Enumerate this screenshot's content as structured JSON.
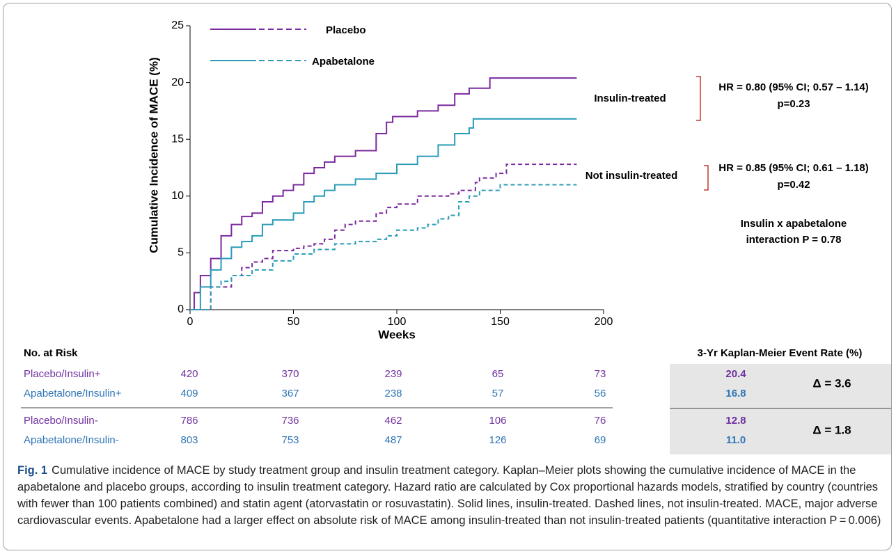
{
  "chart_data": {
    "type": "line",
    "step": true,
    "ylabel": "Cumulative Incidence of MACE (%)",
    "xlabel": "Weeks",
    "xlim": [
      0,
      200
    ],
    "xticks": [
      0,
      50,
      100,
      150,
      200
    ],
    "ylim": [
      0,
      25
    ],
    "yticks": [
      0,
      5,
      10,
      15,
      20,
      25
    ],
    "legend": [
      {
        "name": "Placebo",
        "color": "#7b2a9e"
      },
      {
        "name": "Apabetalone",
        "color": "#2a9cb8"
      }
    ],
    "series": [
      {
        "name": "Placebo/Insulin+",
        "color": "#7b2a9e",
        "dash": false,
        "x": [
          0,
          2,
          5,
          10,
          15,
          20,
          25,
          30,
          35,
          40,
          45,
          50,
          55,
          60,
          65,
          70,
          80,
          90,
          95,
          98,
          110,
          120,
          128,
          135,
          145,
          187
        ],
        "values": [
          0,
          1.5,
          3,
          4.5,
          6.5,
          7.5,
          8.2,
          8.5,
          9.5,
          10,
          10.5,
          11,
          12,
          12.5,
          13,
          13.5,
          14,
          15.5,
          16.5,
          17,
          17.5,
          18,
          19,
          19.5,
          20.4,
          20.4
        ]
      },
      {
        "name": "Apabetalone/Insulin+",
        "color": "#2a9cb8",
        "dash": false,
        "x": [
          0,
          5,
          10,
          15,
          20,
          25,
          30,
          35,
          40,
          50,
          55,
          60,
          65,
          70,
          80,
          90,
          100,
          110,
          120,
          128,
          135,
          137,
          187
        ],
        "values": [
          0,
          2,
          3.5,
          4.5,
          5.5,
          6,
          6.5,
          7.5,
          7.9,
          8.5,
          9.5,
          10,
          10.5,
          11,
          11.5,
          12,
          12.8,
          13.5,
          14.5,
          15.5,
          16,
          16.8,
          16.8
        ]
      },
      {
        "name": "Placebo/Insulin-",
        "color": "#7b2a9e",
        "dash": true,
        "x": [
          0,
          10,
          20,
          25,
          30,
          35,
          40,
          50,
          55,
          60,
          65,
          70,
          75,
          80,
          90,
          95,
          100,
          110,
          125,
          130,
          138,
          140,
          148,
          153,
          187
        ],
        "values": [
          0,
          2,
          3,
          3.7,
          4.2,
          4.5,
          5.2,
          5.4,
          5.6,
          5.8,
          6.2,
          7,
          7.5,
          7.8,
          8.5,
          9,
          9.3,
          10,
          10.2,
          10.5,
          11.2,
          11.6,
          12,
          12.8,
          12.8
        ]
      },
      {
        "name": "Apabetalone/Insulin-",
        "color": "#2a9cb8",
        "dash": true,
        "x": [
          0,
          10,
          15,
          20,
          30,
          40,
          50,
          60,
          70,
          80,
          90,
          95,
          100,
          110,
          115,
          120,
          125,
          130,
          135,
          140,
          150,
          187
        ],
        "values": [
          0,
          2,
          2.5,
          3,
          3.5,
          4.3,
          4.9,
          5.3,
          5.8,
          6,
          6.2,
          6.5,
          7,
          7.2,
          7.5,
          8,
          8.3,
          9.5,
          10,
          10.5,
          11,
          11
        ]
      }
    ],
    "annotations": {
      "group1": "Insulin-treated",
      "hr1": "HR = 0.80 (95% CI; 0.57 – 1.14)",
      "p1": "p=0.23",
      "group2": "Not insulin-treated",
      "hr2": "HR = 0.85 (95% CI; 0.61 – 1.18)",
      "p2": "p=0.42",
      "interaction1": "Insulin x apabetalone",
      "interaction2": "interaction P = 0.78"
    }
  },
  "risk_table": {
    "title": "No. at Risk",
    "rows": [
      {
        "label": "Placebo/Insulin+",
        "counts": [
          "420",
          "370",
          "239",
          "65",
          "73"
        ]
      },
      {
        "label": "Apabetalone/Insulin+",
        "counts": [
          "409",
          "367",
          "238",
          "57",
          "56"
        ]
      },
      {
        "label": "Placebo/Insulin-",
        "counts": [
          "786",
          "736",
          "462",
          "106",
          "76"
        ]
      },
      {
        "label": "Apabetalone/Insulin-",
        "counts": [
          "803",
          "753",
          "487",
          "126",
          "69"
        ]
      }
    ]
  },
  "event_rates": {
    "title": "3-Yr Kaplan-Meier Event Rate (%)",
    "groups": [
      {
        "rates": [
          "20.4",
          "16.8"
        ],
        "delta": "Δ = 3.6"
      },
      {
        "rates": [
          "12.8",
          "11.0"
        ],
        "delta": "Δ = 1.8"
      }
    ]
  },
  "caption": {
    "label": "Fig. 1",
    "text": "Cumulative incidence of MACE by study treatment group and insulin treatment category. Kaplan–Meier plots showing the cumulative incidence of MACE in the apabetalone and placebo groups, according to insulin treatment category. Hazard ratio are calculated by Cox proportional hazards models, stratified by country (countries with fewer than 100 patients combined) and statin agent (atorvastatin or rosuvastatin). Solid lines, insulin-treated. Dashed lines, not insulin-treated. MACE, major adverse cardiovascular events. Apabetalone had a larger effect on absolute risk of MACE among insulin-treated than not insulin-treated patients (quantitative interaction P = 0.006)"
  }
}
